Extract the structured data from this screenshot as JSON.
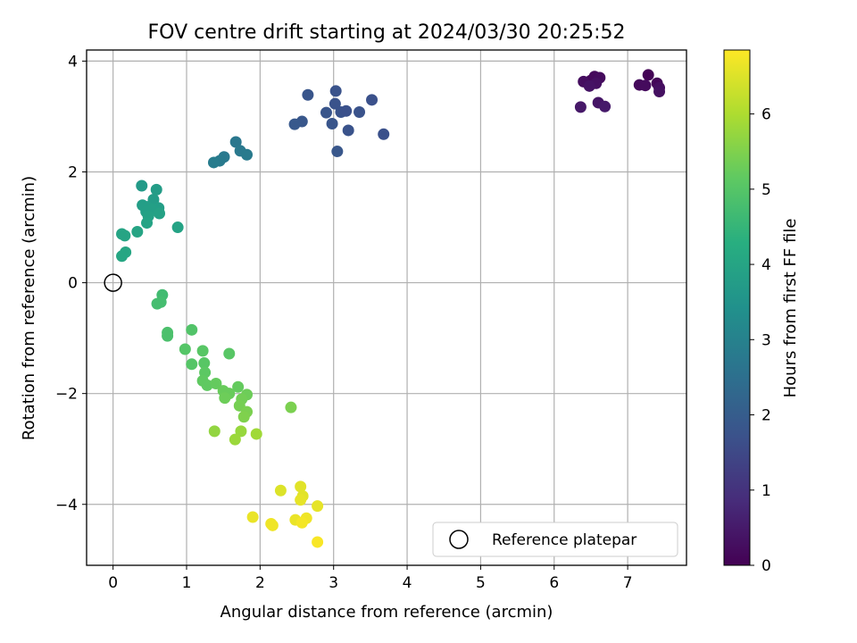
{
  "chart_data": {
    "type": "scatter",
    "title": "FOV centre drift starting at 2024/03/30 20:25:52",
    "xlabel": "Angular distance from reference (arcmin)",
    "ylabel": "Rotation from reference (arcmin)",
    "xlim": [
      -0.36,
      7.8
    ],
    "ylim": [
      -5.1,
      4.2
    ],
    "xticks": [
      0,
      1,
      2,
      3,
      4,
      5,
      6,
      7
    ],
    "yticks": [
      -4,
      -2,
      0,
      2,
      4
    ],
    "xtick_labels": [
      "0",
      "1",
      "2",
      "3",
      "4",
      "5",
      "6",
      "7"
    ],
    "ytick_labels": [
      "−4",
      "−2",
      "0",
      "2",
      "4"
    ],
    "grid": true,
    "colormap": "viridis",
    "colorbar": {
      "label": "Hours from first FF file",
      "range": [
        0,
        6.85
      ],
      "ticks": [
        0,
        1,
        2,
        3,
        4,
        5,
        6
      ],
      "tick_labels": [
        "0",
        "1",
        "2",
        "3",
        "4",
        "5",
        "6"
      ]
    },
    "legend": {
      "label": "Reference platepar",
      "position": "lower-right"
    },
    "reference_point": {
      "x": 0,
      "y": 0
    },
    "points": [
      {
        "x": 6.5,
        "y": 3.65,
        "h": 0.1
      },
      {
        "x": 6.55,
        "y": 3.72,
        "h": 0.15
      },
      {
        "x": 6.62,
        "y": 3.7,
        "h": 0.2
      },
      {
        "x": 6.4,
        "y": 3.63,
        "h": 0.25
      },
      {
        "x": 6.57,
        "y": 3.6,
        "h": 0.3
      },
      {
        "x": 6.48,
        "y": 3.55,
        "h": 0.35
      },
      {
        "x": 6.6,
        "y": 3.25,
        "h": 0.4
      },
      {
        "x": 6.36,
        "y": 3.17,
        "h": 0.45
      },
      {
        "x": 6.69,
        "y": 3.18,
        "h": 0.5
      },
      {
        "x": 7.28,
        "y": 3.75,
        "h": 0.05
      },
      {
        "x": 7.4,
        "y": 3.6,
        "h": 0.1
      },
      {
        "x": 7.16,
        "y": 3.57,
        "h": 0.15
      },
      {
        "x": 7.24,
        "y": 3.56,
        "h": 0.2
      },
      {
        "x": 7.43,
        "y": 3.52,
        "h": 0.25
      },
      {
        "x": 7.43,
        "y": 3.45,
        "h": 0.3
      },
      {
        "x": 2.65,
        "y": 3.39,
        "h": 1.8
      },
      {
        "x": 3.03,
        "y": 3.46,
        "h": 1.75
      },
      {
        "x": 3.52,
        "y": 3.3,
        "h": 1.7
      },
      {
        "x": 3.02,
        "y": 3.23,
        "h": 1.75
      },
      {
        "x": 2.9,
        "y": 3.07,
        "h": 1.8
      },
      {
        "x": 3.1,
        "y": 3.08,
        "h": 1.75
      },
      {
        "x": 3.17,
        "y": 3.1,
        "h": 1.7
      },
      {
        "x": 3.35,
        "y": 3.08,
        "h": 1.75
      },
      {
        "x": 2.57,
        "y": 2.91,
        "h": 1.85
      },
      {
        "x": 2.47,
        "y": 2.86,
        "h": 1.9
      },
      {
        "x": 2.98,
        "y": 2.87,
        "h": 1.8
      },
      {
        "x": 3.2,
        "y": 2.75,
        "h": 1.75
      },
      {
        "x": 3.68,
        "y": 2.68,
        "h": 1.7
      },
      {
        "x": 3.05,
        "y": 2.37,
        "h": 1.85
      },
      {
        "x": 1.67,
        "y": 2.54,
        "h": 2.7
      },
      {
        "x": 1.73,
        "y": 2.38,
        "h": 2.75
      },
      {
        "x": 1.82,
        "y": 2.31,
        "h": 2.8
      },
      {
        "x": 1.51,
        "y": 2.27,
        "h": 2.75
      },
      {
        "x": 1.45,
        "y": 2.2,
        "h": 2.8
      },
      {
        "x": 1.37,
        "y": 2.17,
        "h": 2.85
      },
      {
        "x": 0.39,
        "y": 1.75,
        "h": 3.7
      },
      {
        "x": 0.59,
        "y": 1.68,
        "h": 3.75
      },
      {
        "x": 0.55,
        "y": 1.5,
        "h": 3.75
      },
      {
        "x": 0.4,
        "y": 1.4,
        "h": 3.8
      },
      {
        "x": 0.47,
        "y": 1.37,
        "h": 3.8
      },
      {
        "x": 0.62,
        "y": 1.35,
        "h": 3.8
      },
      {
        "x": 0.53,
        "y": 1.33,
        "h": 3.85
      },
      {
        "x": 0.45,
        "y": 1.28,
        "h": 3.85
      },
      {
        "x": 0.63,
        "y": 1.25,
        "h": 3.9
      },
      {
        "x": 0.48,
        "y": 1.2,
        "h": 3.9
      },
      {
        "x": 0.46,
        "y": 1.08,
        "h": 3.95
      },
      {
        "x": 0.88,
        "y": 1.0,
        "h": 3.95
      },
      {
        "x": 0.12,
        "y": 0.88,
        "h": 4.0
      },
      {
        "x": 0.16,
        "y": 0.85,
        "h": 4.0
      },
      {
        "x": 0.33,
        "y": 0.92,
        "h": 4.0
      },
      {
        "x": 0.17,
        "y": 0.55,
        "h": 4.05
      },
      {
        "x": 0.12,
        "y": 0.48,
        "h": 4.05
      },
      {
        "x": 0.67,
        "y": -0.22,
        "h": 4.7
      },
      {
        "x": 0.6,
        "y": -0.38,
        "h": 4.75
      },
      {
        "x": 0.65,
        "y": -0.35,
        "h": 4.75
      },
      {
        "x": 0.74,
        "y": -0.9,
        "h": 4.85
      },
      {
        "x": 0.74,
        "y": -0.96,
        "h": 4.85
      },
      {
        "x": 1.07,
        "y": -0.85,
        "h": 4.95
      },
      {
        "x": 0.98,
        "y": -1.2,
        "h": 5.0
      },
      {
        "x": 1.22,
        "y": -1.23,
        "h": 5.05
      },
      {
        "x": 1.07,
        "y": -1.47,
        "h": 5.0
      },
      {
        "x": 1.24,
        "y": -1.45,
        "h": 5.05
      },
      {
        "x": 1.58,
        "y": -1.28,
        "h": 5.05
      },
      {
        "x": 1.25,
        "y": -1.62,
        "h": 5.1
      },
      {
        "x": 1.22,
        "y": -1.77,
        "h": 5.15
      },
      {
        "x": 1.28,
        "y": -1.85,
        "h": 5.15
      },
      {
        "x": 1.4,
        "y": -1.82,
        "h": 5.2
      },
      {
        "x": 1.7,
        "y": -1.88,
        "h": 5.2
      },
      {
        "x": 1.58,
        "y": -2.0,
        "h": 5.25
      },
      {
        "x": 1.5,
        "y": -1.95,
        "h": 5.25
      },
      {
        "x": 1.52,
        "y": -2.08,
        "h": 5.3
      },
      {
        "x": 1.82,
        "y": -2.02,
        "h": 5.3
      },
      {
        "x": 1.75,
        "y": -2.1,
        "h": 5.35
      },
      {
        "x": 1.72,
        "y": -2.22,
        "h": 5.4
      },
      {
        "x": 1.82,
        "y": -2.33,
        "h": 5.45
      },
      {
        "x": 1.78,
        "y": -2.42,
        "h": 5.5
      },
      {
        "x": 2.42,
        "y": -2.25,
        "h": 5.45
      },
      {
        "x": 1.38,
        "y": -2.68,
        "h": 5.7
      },
      {
        "x": 1.74,
        "y": -2.68,
        "h": 5.75
      },
      {
        "x": 1.66,
        "y": -2.83,
        "h": 5.8
      },
      {
        "x": 1.95,
        "y": -2.73,
        "h": 5.85
      },
      {
        "x": 2.28,
        "y": -3.75,
        "h": 6.5
      },
      {
        "x": 2.55,
        "y": -3.68,
        "h": 6.55
      },
      {
        "x": 2.58,
        "y": -3.85,
        "h": 6.55
      },
      {
        "x": 2.55,
        "y": -3.92,
        "h": 6.6
      },
      {
        "x": 2.78,
        "y": -4.03,
        "h": 6.6
      },
      {
        "x": 1.9,
        "y": -4.23,
        "h": 6.65
      },
      {
        "x": 2.48,
        "y": -4.28,
        "h": 6.65
      },
      {
        "x": 2.63,
        "y": -4.25,
        "h": 6.7
      },
      {
        "x": 2.15,
        "y": -4.35,
        "h": 6.7
      },
      {
        "x": 2.17,
        "y": -4.38,
        "h": 6.7
      },
      {
        "x": 2.57,
        "y": -4.33,
        "h": 6.75
      },
      {
        "x": 2.78,
        "y": -4.68,
        "h": 6.8
      }
    ]
  }
}
